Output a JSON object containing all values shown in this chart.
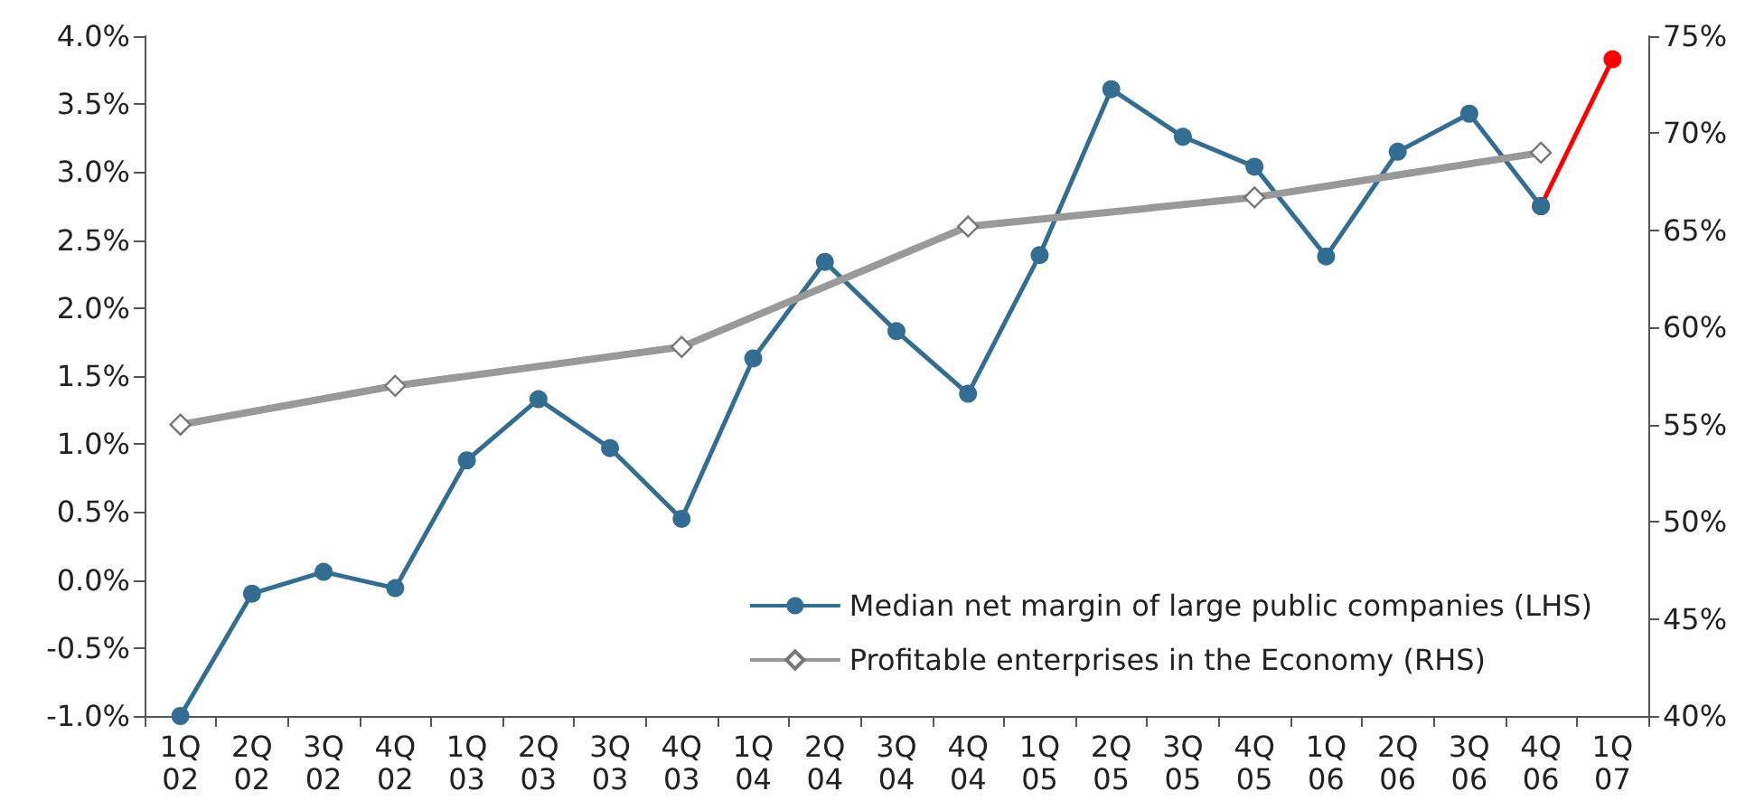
{
  "chart_data": {
    "type": "line",
    "categories": [
      "1Q\n02",
      "2Q\n02",
      "3Q\n02",
      "4Q\n02",
      "1Q\n03",
      "2Q\n03",
      "3Q\n03",
      "4Q\n03",
      "1Q\n04",
      "2Q\n04",
      "3Q\n04",
      "4Q\n04",
      "1Q\n05",
      "2Q\n05",
      "3Q\n05",
      "4Q\n05",
      "1Q\n06",
      "2Q\n06",
      "3Q\n06",
      "4Q\n06",
      "1Q\n07"
    ],
    "series": [
      {
        "color": "#ff0000",
        "marker": "circle",
        "values": [
          null,
          null,
          null,
          null,
          null,
          null,
          null,
          null,
          null,
          null,
          null,
          null,
          null,
          null,
          null,
          null,
          null,
          null,
          null,
          2.75,
          3.83
        ]
      },
      {
        "name": "Median net margin of large public companies (LHS)",
        "color": "#336e92",
        "marker": "circle",
        "values": [
          -1.0,
          -0.1,
          0.06,
          -0.06,
          0.88,
          1.33,
          0.97,
          0.45,
          1.63,
          2.34,
          1.83,
          1.37,
          2.39,
          3.61,
          3.26,
          3.04,
          2.38,
          3.15,
          3.43,
          2.75,
          null
        ]
      },
      {
        "name": "Profitable enterprises in the Economy (RHS)",
        "color": "#999999",
        "marker": "diamond",
        "axis": "y2",
        "values": [
          55.0,
          null,
          null,
          57.0,
          null,
          null,
          null,
          59.0,
          null,
          null,
          null,
          65.2,
          null,
          null,
          null,
          66.7,
          null,
          null,
          null,
          69.0,
          null
        ]
      }
    ],
    "ylim": [
      -1,
      4
    ],
    "yticks": [
      {
        "value": -1,
        "label": "-1.0%"
      },
      {
        "value": -0.5,
        "label": "-0.5%"
      },
      {
        "value": 0,
        "label": "0.0%"
      },
      {
        "value": 0.5,
        "label": "0.5%"
      },
      {
        "value": 1,
        "label": "1.0%"
      },
      {
        "value": 1.5,
        "label": "1.5%"
      },
      {
        "value": 2,
        "label": "2.0%"
      },
      {
        "value": 2.5,
        "label": "2.5%"
      },
      {
        "value": 3,
        "label": "3.0%"
      },
      {
        "value": 3.5,
        "label": "3.5%"
      },
      {
        "value": 4,
        "label": "4.0%"
      }
    ],
    "y2lim": [
      40,
      75
    ],
    "y2ticks": [
      {
        "value": 40,
        "label": "40%"
      },
      {
        "value": 45,
        "label": "45%"
      },
      {
        "value": 50,
        "label": "50%"
      },
      {
        "value": 55,
        "label": "55%"
      },
      {
        "value": 60,
        "label": "60%"
      },
      {
        "value": 65,
        "label": "65%"
      },
      {
        "value": 70,
        "label": "70%"
      },
      {
        "value": 75,
        "label": "75%"
      }
    ],
    "grid": false,
    "legend": "bottom right"
  }
}
